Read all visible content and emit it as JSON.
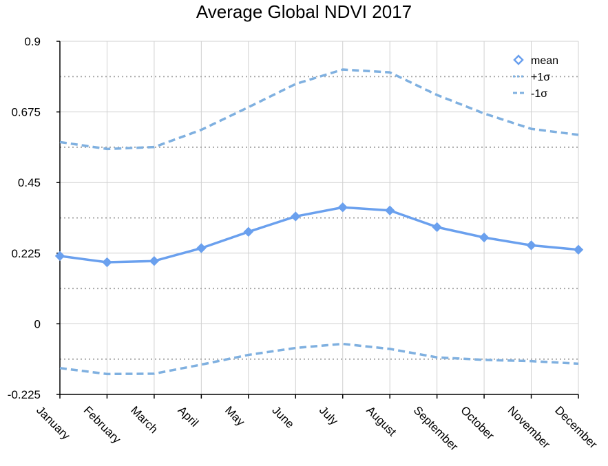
{
  "chart_data": {
    "type": "line",
    "title": "Average Global NDVI 2017",
    "xlabel": "",
    "ylabel": "",
    "categories": [
      "January",
      "February",
      "March",
      "April",
      "May",
      "June",
      "July",
      "August",
      "September",
      "October",
      "November",
      "December"
    ],
    "series": [
      {
        "name": "mean",
        "values": [
          0.216,
          0.196,
          0.2,
          0.241,
          0.293,
          0.342,
          0.371,
          0.361,
          0.308,
          0.275,
          0.25,
          0.236
        ],
        "color": "#6aa0ee",
        "style": "solid",
        "marker": "diamond"
      },
      {
        "name": "+1σ",
        "values": [
          0.579,
          0.557,
          0.563,
          0.618,
          0.69,
          0.764,
          0.81,
          0.801,
          0.729,
          0.67,
          0.621,
          0.602
        ],
        "color": "#7fb0e0",
        "style": "dashed"
      },
      {
        "name": "-1σ",
        "values": [
          -0.141,
          -0.16,
          -0.159,
          -0.13,
          -0.099,
          -0.077,
          -0.064,
          -0.08,
          -0.107,
          -0.115,
          -0.119,
          -0.127
        ],
        "color": "#7fb0e0",
        "style": "dashed"
      }
    ],
    "ylim": [
      -0.225,
      0.9
    ],
    "yticks": [
      0.9,
      0.675,
      0.45,
      0.225,
      0,
      -0.225
    ],
    "ytick_labels": [
      "0.9",
      "0.675",
      "0.45",
      "0.225",
      "0",
      "-0.225"
    ],
    "minor_dotted_grid": [
      0.7875,
      0.5625,
      0.3375,
      0.1125,
      -0.1125
    ],
    "grid": true,
    "legend": "top-right"
  }
}
